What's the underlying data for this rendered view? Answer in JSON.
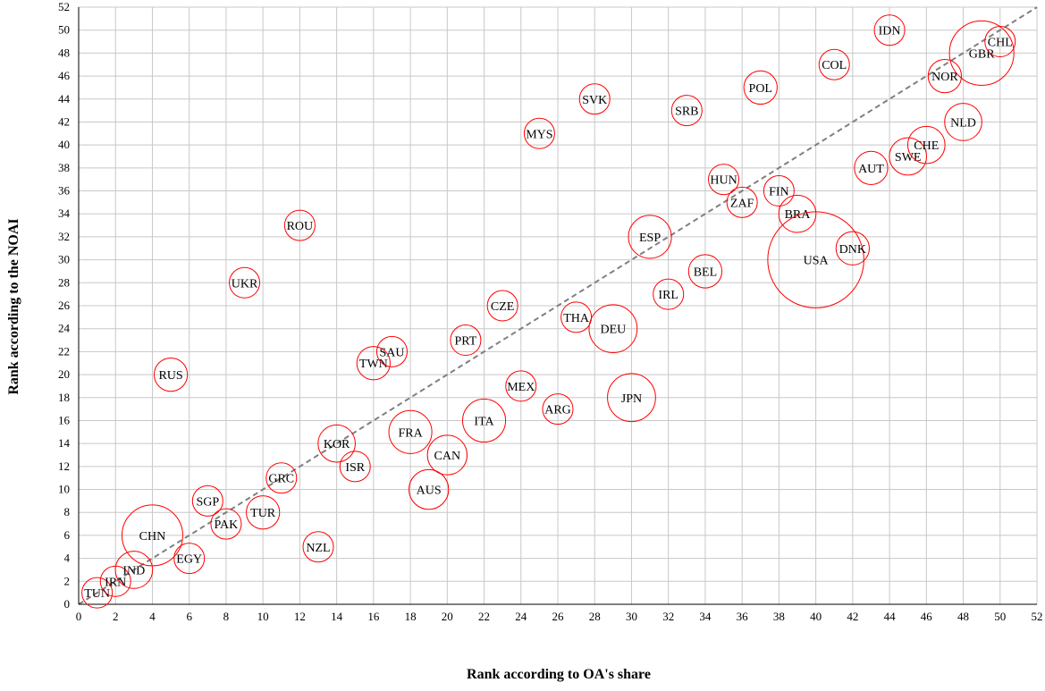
{
  "chart_data": {
    "type": "scatter",
    "title": "",
    "xlabel": "Rank according to OA's share",
    "ylabel": "Rank according to the NOAI",
    "xlim": [
      0,
      52
    ],
    "ylim": [
      0,
      52
    ],
    "xticks": [
      "0",
      "2",
      "4",
      "6",
      "8",
      "10",
      "12",
      "14",
      "16",
      "18",
      "20",
      "22",
      "24",
      "26",
      "28",
      "30",
      "32",
      "34",
      "36",
      "38",
      "40",
      "42",
      "44",
      "46",
      "48",
      "50",
      "52"
    ],
    "yticks": [
      "0",
      "2",
      "4",
      "6",
      "8",
      "10",
      "12",
      "14",
      "16",
      "18",
      "20",
      "22",
      "24",
      "26",
      "28",
      "30",
      "32",
      "34",
      "36",
      "38",
      "40",
      "42",
      "44",
      "46",
      "48",
      "50",
      "52"
    ],
    "grid": true,
    "bubbles": true,
    "reference_line": "y = x (dashed)",
    "colors": {
      "marker": "#ff0000",
      "grid": "#c8c8c8",
      "reference_line": "#808080"
    },
    "points": [
      {
        "label": "TUN",
        "x": 1,
        "y": 1,
        "size": 1.0
      },
      {
        "label": "IRN",
        "x": 2,
        "y": 2,
        "size": 1.0
      },
      {
        "label": "IND",
        "x": 3,
        "y": 3,
        "size": 1.5
      },
      {
        "label": "CHN",
        "x": 4,
        "y": 6,
        "size": 4.0
      },
      {
        "label": "RUS",
        "x": 5,
        "y": 20,
        "size": 1.2
      },
      {
        "label": "EGY",
        "x": 6,
        "y": 4,
        "size": 1.0
      },
      {
        "label": "SGP",
        "x": 7,
        "y": 9,
        "size": 1.0
      },
      {
        "label": "PAK",
        "x": 8,
        "y": 7,
        "size": 1.0
      },
      {
        "label": "UKR",
        "x": 9,
        "y": 28,
        "size": 1.0
      },
      {
        "label": "TUR",
        "x": 10,
        "y": 8,
        "size": 1.2
      },
      {
        "label": "GRC",
        "x": 11,
        "y": 11,
        "size": 1.0
      },
      {
        "label": "ROU",
        "x": 12,
        "y": 33,
        "size": 1.0
      },
      {
        "label": "NZL",
        "x": 13,
        "y": 5,
        "size": 1.0
      },
      {
        "label": "KOR",
        "x": 14,
        "y": 14,
        "size": 1.5
      },
      {
        "label": "ISR",
        "x": 15,
        "y": 12,
        "size": 1.0
      },
      {
        "label": "TWN",
        "x": 16,
        "y": 21,
        "size": 1.2
      },
      {
        "label": "SAU",
        "x": 17,
        "y": 22,
        "size": 1.0
      },
      {
        "label": "FRA",
        "x": 18,
        "y": 15,
        "size": 2.0
      },
      {
        "label": "AUS",
        "x": 19,
        "y": 10,
        "size": 1.7
      },
      {
        "label": "CAN",
        "x": 20,
        "y": 13,
        "size": 1.7
      },
      {
        "label": "PRT",
        "x": 21,
        "y": 23,
        "size": 1.0
      },
      {
        "label": "ITA",
        "x": 22,
        "y": 16,
        "size": 2.0
      },
      {
        "label": "CZE",
        "x": 23,
        "y": 26,
        "size": 1.0
      },
      {
        "label": "MEX",
        "x": 24,
        "y": 19,
        "size": 1.0
      },
      {
        "label": "MYS",
        "x": 25,
        "y": 41,
        "size": 1.0
      },
      {
        "label": "ARG",
        "x": 26,
        "y": 17,
        "size": 1.0
      },
      {
        "label": "THA",
        "x": 27,
        "y": 25,
        "size": 1.0
      },
      {
        "label": "SVK",
        "x": 28,
        "y": 44,
        "size": 1.0
      },
      {
        "label": "DEU",
        "x": 29,
        "y": 24,
        "size": 2.5
      },
      {
        "label": "JPN",
        "x": 30,
        "y": 18,
        "size": 2.5
      },
      {
        "label": "ESP",
        "x": 31,
        "y": 32,
        "size": 2.0
      },
      {
        "label": "IRL",
        "x": 32,
        "y": 27,
        "size": 1.0
      },
      {
        "label": "SRB",
        "x": 33,
        "y": 43,
        "size": 1.0
      },
      {
        "label": "BEL",
        "x": 34,
        "y": 29,
        "size": 1.2
      },
      {
        "label": "HUN",
        "x": 35,
        "y": 37,
        "size": 1.0
      },
      {
        "label": "ZAF",
        "x": 36,
        "y": 35,
        "size": 1.0
      },
      {
        "label": "POL",
        "x": 37,
        "y": 45,
        "size": 1.2
      },
      {
        "label": "FIN",
        "x": 38,
        "y": 36,
        "size": 1.0
      },
      {
        "label": "BRA",
        "x": 39,
        "y": 34,
        "size": 1.5
      },
      {
        "label": "USA",
        "x": 40,
        "y": 30,
        "size": 10.0
      },
      {
        "label": "COL",
        "x": 41,
        "y": 47,
        "size": 1.0
      },
      {
        "label": "DNK",
        "x": 42,
        "y": 31,
        "size": 1.2
      },
      {
        "label": "AUT",
        "x": 43,
        "y": 38,
        "size": 1.2
      },
      {
        "label": "IDN",
        "x": 44,
        "y": 50,
        "size": 1.0
      },
      {
        "label": "SWE",
        "x": 45,
        "y": 39,
        "size": 1.5
      },
      {
        "label": "CHE",
        "x": 46,
        "y": 40,
        "size": 1.5
      },
      {
        "label": "NOR",
        "x": 47,
        "y": 46,
        "size": 1.2
      },
      {
        "label": "NLD",
        "x": 48,
        "y": 42,
        "size": 1.5
      },
      {
        "label": "GBR",
        "x": 49,
        "y": 48,
        "size": 4.5
      },
      {
        "label": "CHL",
        "x": 50,
        "y": 49,
        "size": 1.0
      }
    ]
  }
}
